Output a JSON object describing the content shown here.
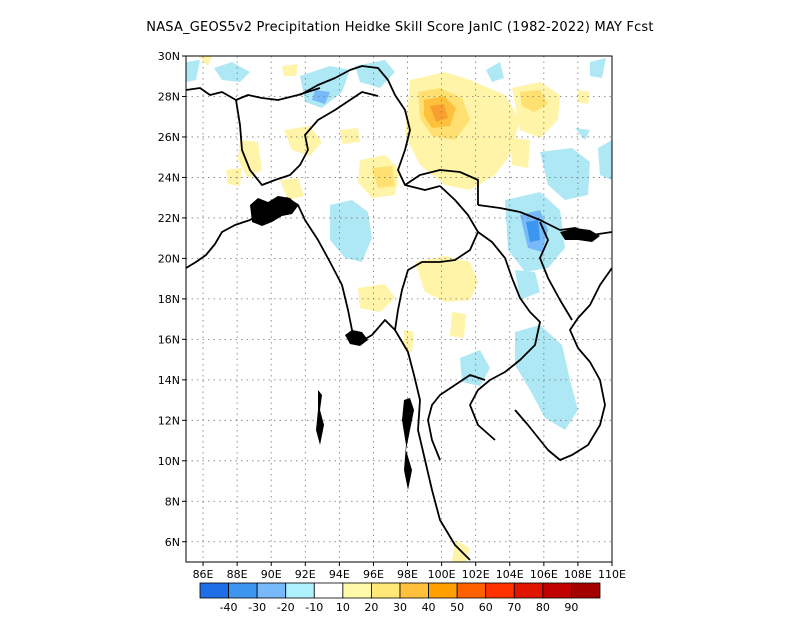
{
  "title": "NASA_GEOS5v2  Precipitation Heidke Skill Score JanIC (1982-2022) MAY Fcst",
  "map": {
    "lon_range": [
      85,
      110
    ],
    "lat_range": [
      5,
      30
    ],
    "lon_ticks": [
      "86E",
      "88E",
      "90E",
      "92E",
      "94E",
      "96E",
      "98E",
      "100E",
      "102E",
      "104E",
      "106E",
      "108E",
      "110E"
    ],
    "lat_ticks": [
      "6N",
      "8N",
      "10N",
      "12N",
      "14N",
      "16N",
      "18N",
      "20N",
      "22N",
      "24N",
      "26N",
      "28N",
      "30N"
    ],
    "grid": "dotted"
  },
  "colorbar": {
    "labels": [
      "-40",
      "-30",
      "-20",
      "-10",
      "10",
      "20",
      "30",
      "40",
      "50",
      "60",
      "70",
      "80",
      "90"
    ],
    "colors": [
      "#1e6ee6",
      "#3c96f0",
      "#78b9fa",
      "#aff0ff",
      "#ffffff",
      "#fffaaa",
      "#ffe878",
      "#ffc03c",
      "#ffa000",
      "#ff6000",
      "#ff3200",
      "#e11400",
      "#c00000",
      "#a50000"
    ]
  },
  "styles": {
    "neg1": "#aee8f5",
    "neg2": "#78b9fa",
    "neg3": "#3c96f0",
    "pos1": "#fff4a8",
    "pos2": "#ffe070",
    "pos3": "#ffc03c",
    "pos4": "#f7a030"
  }
}
